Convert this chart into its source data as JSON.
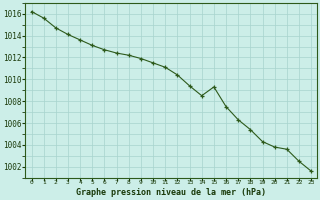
{
  "title": "Graphe pression niveau de la mer (hPa)",
  "x_values": [
    0,
    1,
    2,
    3,
    4,
    5,
    6,
    7,
    8,
    9,
    10,
    11,
    12,
    13,
    14,
    15,
    16,
    17,
    18,
    19,
    20,
    21,
    22,
    23
  ],
  "y_values": [
    1016.2,
    1015.6,
    1014.7,
    1014.1,
    1013.6,
    1013.1,
    1012.7,
    1012.4,
    1012.2,
    1011.9,
    1011.5,
    1011.1,
    1010.4,
    1009.4,
    1008.5,
    1009.3,
    1007.5,
    1006.3,
    1005.4,
    1004.3,
    1003.8,
    1003.6,
    1002.5,
    1001.6
  ],
  "line_color": "#2d5a1b",
  "marker_color": "#2d5a1b",
  "bg_color": "#cceee8",
  "grid_color": "#a8d4ce",
  "text_color": "#1a3a0a",
  "ylim_min": 1001,
  "ylim_max": 1017,
  "yticks": [
    1002,
    1004,
    1006,
    1008,
    1010,
    1012,
    1014,
    1016
  ],
  "xlabel": "Graphe pression niveau de la mer (hPa)",
  "spine_color": "#2d5a1b",
  "figw": 3.2,
  "figh": 2.0,
  "dpi": 100
}
